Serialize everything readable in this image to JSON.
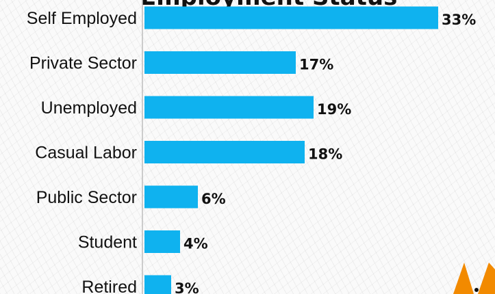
{
  "title": "Employment Status",
  "colors": {
    "bar": "#0fb2ef",
    "logo": "#f28a00",
    "axis": "#bdbdbd"
  },
  "chart_data": {
    "type": "bar",
    "orientation": "horizontal",
    "title": "Employment Status",
    "categories": [
      "Self Employed",
      "Private Sector",
      "Unemployed",
      "Casual Labor",
      "Public Sector",
      "Student",
      "Retired"
    ],
    "values": [
      33,
      17,
      19,
      18,
      6,
      4,
      3
    ],
    "value_labels": [
      "33%",
      "17%",
      "19%",
      "18%",
      "6%",
      "4%",
      "3%"
    ],
    "xlabel": "",
    "ylabel": "",
    "grid": false,
    "legend": "none"
  }
}
